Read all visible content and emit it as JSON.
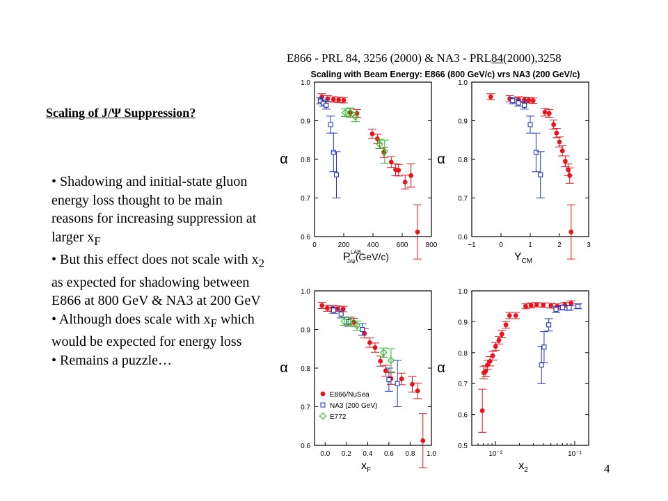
{
  "reference": {
    "prefix": "E866 - PRL 84, 3256 (2000) & NA3 - PRL",
    "underlined": "84",
    "suffix": "(2000),3258"
  },
  "slide_title": "Scaling of J/Ψ Suppression?",
  "bullets": [
    "• Shadowing and initial-state gluon energy loss thought to be main reasons for increasing suppression at larger x",
    "• But this effect does not scale with x",
    "• Although does scale with x",
    "• Remains a puzzle…"
  ],
  "bullet_parts": {
    "b1_sub": "F",
    "b2_sub": "2",
    "b2_tail": " as expected for shadowing between E866 at 800 GeV & NA3 at 200 GeV",
    "b3_sub": "F",
    "b3_tail": " which would be expected for energy loss"
  },
  "page_number": "4",
  "figure": {
    "title": "Scaling with Beam Energy: E866 (800 GeV/c) vrs NA3 (200 GeV/c)",
    "colors": {
      "E866": "#e8141c",
      "NA3": "#2233bb",
      "E772": "#22bb22"
    }
  },
  "chart_data": [
    {
      "type": "scatter",
      "xlabel": "P",
      "xlabel_sup": "LAB",
      "xlabel_sub": "J/ψ",
      "xlabel_tail": "(GeV/c)",
      "ylabel": "α",
      "xlim": [
        0,
        800
      ],
      "ylim": [
        0.6,
        1.0
      ],
      "xticks": [
        "0",
        "200",
        "400",
        "600",
        "800"
      ],
      "yticks": [
        "0.6",
        "0.7",
        "0.8",
        "0.9",
        "1.0"
      ],
      "series": [
        {
          "name": "E866/NuSea",
          "marker": "filled-circle",
          "x": [
            50,
            90,
            130,
            165,
            200,
            245,
            290,
            395,
            430,
            475,
            525,
            555,
            575,
            620,
            660,
            705
          ],
          "y": [
            0.962,
            0.957,
            0.955,
            0.954,
            0.953,
            0.922,
            0.919,
            0.866,
            0.853,
            0.818,
            0.793,
            0.773,
            0.772,
            0.741,
            0.758,
            0.612
          ],
          "err": [
            0.008,
            0.008,
            0.007,
            0.007,
            0.007,
            0.01,
            0.01,
            0.012,
            0.012,
            0.013,
            0.014,
            0.015,
            0.015,
            0.018,
            0.03,
            0.07
          ]
        },
        {
          "name": "NA3 (200 GeV)",
          "marker": "open-square",
          "x": [
            40,
            60,
            80,
            110,
            130,
            150
          ],
          "y": [
            0.952,
            0.946,
            0.94,
            0.89,
            0.818,
            0.76
          ],
          "err": [
            0.008,
            0.008,
            0.01,
            0.022,
            0.05,
            0.06
          ]
        },
        {
          "name": "E772",
          "marker": "open-diamond",
          "x": [
            210,
            245,
            280,
            445,
            480
          ],
          "y": [
            0.921,
            0.921,
            0.91,
            0.84,
            0.82
          ],
          "err": [
            0.01,
            0.012,
            0.012,
            0.012,
            0.03
          ]
        }
      ]
    },
    {
      "type": "scatter",
      "xlabel": "Y",
      "xlabel_sub": "CM",
      "ylabel": "α",
      "xlim": [
        -1,
        3
      ],
      "ylim": [
        0.6,
        1.0
      ],
      "xticks": [
        "−1",
        "0",
        "1",
        "2",
        "3"
      ],
      "yticks": [
        "0.6",
        "0.7",
        "0.8",
        "0.9",
        "1.0"
      ],
      "series": [
        {
          "name": "E866/NuSea",
          "marker": "filled-circle",
          "x": [
            -0.35,
            0.3,
            0.6,
            0.8,
            0.95,
            1.1,
            1.5,
            1.65,
            1.8,
            1.9,
            2.0,
            2.1,
            2.2,
            2.3,
            2.35,
            2.4
          ],
          "y": [
            0.962,
            0.957,
            0.955,
            0.954,
            0.953,
            0.952,
            0.922,
            0.919,
            0.89,
            0.868,
            0.845,
            0.822,
            0.795,
            0.773,
            0.758,
            0.612
          ],
          "err": [
            0.008,
            0.008,
            0.007,
            0.007,
            0.007,
            0.007,
            0.01,
            0.01,
            0.012,
            0.012,
            0.013,
            0.013,
            0.014,
            0.015,
            0.02,
            0.07
          ]
        },
        {
          "name": "NA3 (200 GeV)",
          "marker": "open-square",
          "x": [
            0.4,
            0.6,
            0.8,
            1.0,
            1.2,
            1.35
          ],
          "y": [
            0.952,
            0.946,
            0.94,
            0.89,
            0.818,
            0.76
          ],
          "err": [
            0.008,
            0.008,
            0.01,
            0.022,
            0.05,
            0.06
          ]
        }
      ]
    },
    {
      "type": "scatter",
      "xlabel": "x",
      "xlabel_sub": "F",
      "ylabel": "α",
      "xlim": [
        -0.1,
        1.0
      ],
      "ylim": [
        0.6,
        1.0
      ],
      "xticks": [
        "0.0",
        "0.2",
        "0.4",
        "0.6",
        "0.8",
        "1.0"
      ],
      "yticks": [
        "0.6",
        "0.7",
        "0.8",
        "0.9",
        "1.0"
      ],
      "legend": "bottom-left",
      "series": [
        {
          "name": "E866/NuSea",
          "marker": "filled-circle",
          "x": [
            -0.03,
            0.02,
            0.07,
            0.12,
            0.17,
            0.22,
            0.27,
            0.37,
            0.42,
            0.47,
            0.52,
            0.57,
            0.62,
            0.72,
            0.82,
            0.87,
            0.92
          ],
          "y": [
            0.962,
            0.955,
            0.955,
            0.954,
            0.953,
            0.922,
            0.919,
            0.89,
            0.866,
            0.853,
            0.818,
            0.793,
            0.773,
            0.772,
            0.758,
            0.741,
            0.612
          ],
          "err": [
            0.008,
            0.008,
            0.007,
            0.007,
            0.007,
            0.01,
            0.01,
            0.012,
            0.012,
            0.012,
            0.013,
            0.014,
            0.015,
            0.015,
            0.02,
            0.02,
            0.07
          ]
        },
        {
          "name": "NA3 (200 GeV)",
          "marker": "open-square",
          "x": [
            0.08,
            0.15,
            0.22,
            0.35,
            0.6,
            0.68
          ],
          "y": [
            0.95,
            0.94,
            0.92,
            0.9,
            0.77,
            0.76
          ],
          "err": [
            0.008,
            0.01,
            0.012,
            0.015,
            0.03,
            0.06
          ]
        },
        {
          "name": "E772",
          "marker": "open-diamond",
          "x": [
            0.18,
            0.24,
            0.3,
            0.55,
            0.62
          ],
          "y": [
            0.921,
            0.92,
            0.91,
            0.84,
            0.82
          ],
          "err": [
            0.01,
            0.012,
            0.012,
            0.012,
            0.03
          ]
        }
      ]
    },
    {
      "type": "scatter",
      "xlabel": "x",
      "xlabel_sub": "2",
      "ylabel": "α",
      "xscale": "log",
      "xlim": [
        0.005,
        0.15
      ],
      "ylim": [
        0.5,
        1.0
      ],
      "xticks": [
        "10⁻²",
        "10⁻¹"
      ],
      "yticks": [
        "0.5",
        "0.6",
        "0.7",
        "0.8",
        "0.9",
        "1.0"
      ],
      "series": [
        {
          "name": "E866/NuSea",
          "marker": "filled-circle",
          "x": [
            0.0068,
            0.0071,
            0.0075,
            0.0079,
            0.0085,
            0.0092,
            0.01,
            0.011,
            0.012,
            0.0135,
            0.015,
            0.018,
            0.024,
            0.028,
            0.033,
            0.04,
            0.05,
            0.06,
            0.075,
            0.09
          ],
          "y": [
            0.612,
            0.735,
            0.74,
            0.76,
            0.772,
            0.79,
            0.82,
            0.84,
            0.86,
            0.89,
            0.92,
            0.92,
            0.95,
            0.953,
            0.955,
            0.954,
            0.952,
            0.95,
            0.955,
            0.96
          ],
          "err": [
            0.07,
            0.02,
            0.018,
            0.015,
            0.015,
            0.014,
            0.013,
            0.012,
            0.012,
            0.011,
            0.01,
            0.01,
            0.008,
            0.008,
            0.007,
            0.007,
            0.008,
            0.008,
            0.008,
            0.008
          ]
        },
        {
          "name": "NA3 (200 GeV)",
          "marker": "open-square",
          "x": [
            0.038,
            0.041,
            0.047,
            0.058,
            0.07,
            0.085,
            0.11
          ],
          "y": [
            0.76,
            0.818,
            0.89,
            0.94,
            0.946,
            0.945,
            0.95
          ],
          "err": [
            0.06,
            0.05,
            0.02,
            0.01,
            0.008,
            0.008,
            0.008
          ]
        }
      ]
    }
  ]
}
